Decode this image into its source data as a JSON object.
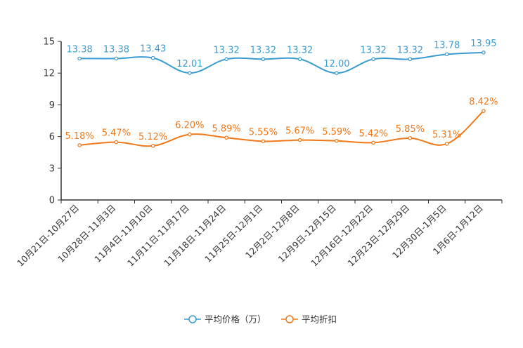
{
  "chart_data": {
    "type": "line",
    "categories": [
      "10月21日-10月27日",
      "10月28日-11月3日",
      "11月4日-11月10日",
      "11月11日-11月17日",
      "11月18日-11月24日",
      "11月25日-12月1日",
      "12月2日-12月8日",
      "12月9日-12月15日",
      "12月16日-12月22日",
      "12月23日-12月29日",
      "12月30日-1月5日",
      "1月6日-1月12日"
    ],
    "ylim": [
      0,
      15
    ],
    "yticks": [
      "0",
      "3",
      "6",
      "9",
      "12",
      "15"
    ],
    "series": [
      {
        "name": "平均价格（万）",
        "color": "#3a9bd0",
        "values": [
          13.38,
          13.38,
          13.43,
          12.01,
          13.32,
          13.32,
          13.32,
          12.0,
          13.32,
          13.32,
          13.78,
          13.95
        ],
        "labels": [
          "13.38",
          "13.38",
          "13.43",
          "12.01",
          "13.32",
          "13.32",
          "13.32",
          "12.00",
          "13.32",
          "13.32",
          "13.78",
          "13.95"
        ]
      },
      {
        "name": "平均折扣",
        "color": "#f07818",
        "values": [
          5.18,
          5.47,
          5.12,
          6.2,
          5.89,
          5.55,
          5.67,
          5.59,
          5.42,
          5.85,
          5.31,
          8.42
        ],
        "labels": [
          "5.18%",
          "5.47%",
          "5.12%",
          "6.20%",
          "5.89%",
          "5.55%",
          "5.67%",
          "5.59%",
          "5.42%",
          "5.85%",
          "5.31%",
          "8.42%"
        ]
      }
    ],
    "legend_position": "bottom-center",
    "grid": false
  }
}
